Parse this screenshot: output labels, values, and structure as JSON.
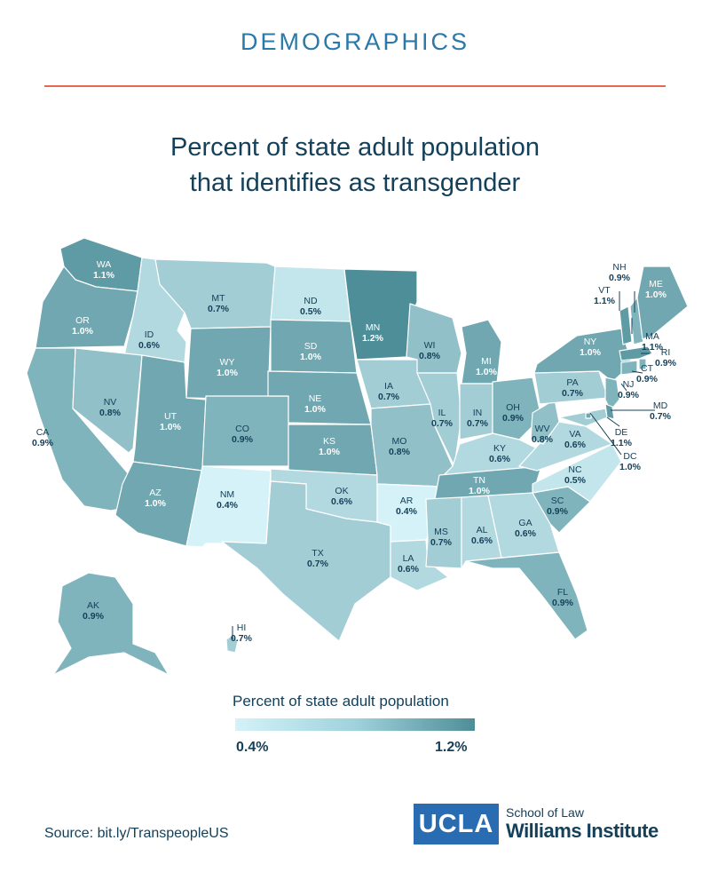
{
  "header": "DEMOGRAPHICS",
  "title_line1": "Percent of state adult population",
  "title_line2": "that identifies as transgender",
  "legend": {
    "title": "Percent of state adult population",
    "min_label": "0.4%",
    "max_label": "1.2%",
    "min_color": "#d4f2f8",
    "max_color": "#4e8e98"
  },
  "source": "Source: bit.ly/TranspeopleUS",
  "logo": {
    "ucla": "UCLA",
    "school": "School of Law",
    "institute": "Williams Institute",
    "color": "#2a6cb1"
  },
  "states": [
    {
      "abbr": "WA",
      "value": "1.1%"
    },
    {
      "abbr": "OR",
      "value": "1.0%"
    },
    {
      "abbr": "CA",
      "value": "0.9%"
    },
    {
      "abbr": "ID",
      "value": "0.6%"
    },
    {
      "abbr": "NV",
      "value": "0.8%"
    },
    {
      "abbr": "MT",
      "value": "0.7%"
    },
    {
      "abbr": "WY",
      "value": "1.0%"
    },
    {
      "abbr": "UT",
      "value": "1.0%"
    },
    {
      "abbr": "AZ",
      "value": "1.0%"
    },
    {
      "abbr": "CO",
      "value": "0.9%"
    },
    {
      "abbr": "NM",
      "value": "0.4%"
    },
    {
      "abbr": "ND",
      "value": "0.5%"
    },
    {
      "abbr": "SD",
      "value": "1.0%"
    },
    {
      "abbr": "NE",
      "value": "1.0%"
    },
    {
      "abbr": "KS",
      "value": "1.0%"
    },
    {
      "abbr": "OK",
      "value": "0.6%"
    },
    {
      "abbr": "TX",
      "value": "0.7%"
    },
    {
      "abbr": "MN",
      "value": "1.2%"
    },
    {
      "abbr": "IA",
      "value": "0.7%"
    },
    {
      "abbr": "MO",
      "value": "0.8%"
    },
    {
      "abbr": "AR",
      "value": "0.4%"
    },
    {
      "abbr": "LA",
      "value": "0.6%"
    },
    {
      "abbr": "WI",
      "value": "0.8%"
    },
    {
      "abbr": "IL",
      "value": "0.7%"
    },
    {
      "abbr": "MI",
      "value": "1.0%"
    },
    {
      "abbr": "IN",
      "value": "0.7%"
    },
    {
      "abbr": "OH",
      "value": "0.9%"
    },
    {
      "abbr": "KY",
      "value": "0.6%"
    },
    {
      "abbr": "TN",
      "value": "1.0%"
    },
    {
      "abbr": "MS",
      "value": "0.7%"
    },
    {
      "abbr": "AL",
      "value": "0.6%"
    },
    {
      "abbr": "GA",
      "value": "0.6%"
    },
    {
      "abbr": "FL",
      "value": "0.9%"
    },
    {
      "abbr": "SC",
      "value": "0.9%"
    },
    {
      "abbr": "NC",
      "value": "0.5%"
    },
    {
      "abbr": "VA",
      "value": "0.6%"
    },
    {
      "abbr": "WV",
      "value": "0.8%"
    },
    {
      "abbr": "PA",
      "value": "0.7%"
    },
    {
      "abbr": "NY",
      "value": "1.0%"
    },
    {
      "abbr": "NJ",
      "value": "0.9%"
    },
    {
      "abbr": "DE",
      "value": "1.1%"
    },
    {
      "abbr": "MD",
      "value": "0.7%"
    },
    {
      "abbr": "DC",
      "value": "1.0%"
    },
    {
      "abbr": "CT",
      "value": "0.9%"
    },
    {
      "abbr": "RI",
      "value": "0.9%"
    },
    {
      "abbr": "MA",
      "value": "1.1%"
    },
    {
      "abbr": "VT",
      "value": "1.1%"
    },
    {
      "abbr": "NH",
      "value": "0.9%"
    },
    {
      "abbr": "ME",
      "value": "1.0%"
    },
    {
      "abbr": "AK",
      "value": "0.9%"
    },
    {
      "abbr": "HI",
      "value": "0.7%"
    }
  ]
}
